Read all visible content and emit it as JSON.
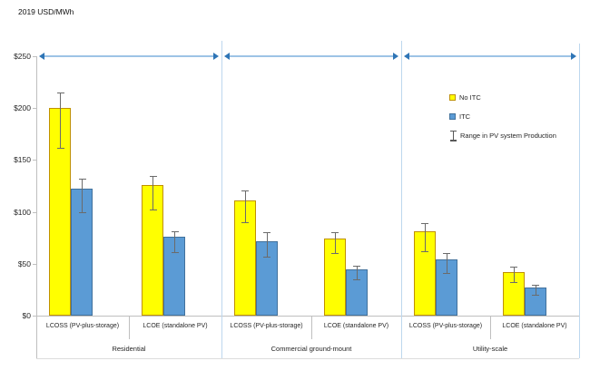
{
  "title": "2019 USD/MWh",
  "legend": {
    "items": [
      {
        "label": "No ITC",
        "swatch": "no-itc-square",
        "color": "#FFFF00"
      },
      {
        "label": "ITC",
        "swatch": "itc-square",
        "color": "#5B9BD5"
      },
      {
        "label": "Range in PV system Production",
        "swatch": "error-bar-glyph"
      }
    ]
  },
  "chart_data": {
    "type": "bar",
    "title": "2019 USD/MWh",
    "ylabel": "2019 USD/MWh",
    "ylim": [
      0,
      250
    ],
    "ytick_labels": [
      "$0",
      "$50",
      "$100",
      "$150",
      "$200",
      "$250"
    ],
    "ytick_values": [
      0,
      50,
      100,
      150,
      200,
      250
    ],
    "grid": false,
    "legend_position": "upper-right-inside",
    "series": [
      "No ITC",
      "ITC"
    ],
    "error_bars_meaning": "Range in PV system Production",
    "groups": [
      {
        "label": "Residential",
        "categories": [
          {
            "label": "LCOSS (PV-plus-storage)",
            "values": {
              "No ITC": 200,
              "ITC": 122
            },
            "error_ranges": {
              "No ITC": [
                162,
                215
              ],
              "ITC": [
                100,
                132
              ]
            }
          },
          {
            "label": "LCOE (standalone PV)",
            "values": {
              "No ITC": 126,
              "ITC": 76
            },
            "error_ranges": {
              "No ITC": [
                102,
                135
              ],
              "ITC": [
                61,
                81
              ]
            }
          }
        ]
      },
      {
        "label": "Commercial ground-mount",
        "categories": [
          {
            "label": "LCOSS (PV-plus-storage)",
            "values": {
              "No ITC": 111,
              "ITC": 72
            },
            "error_ranges": {
              "No ITC": [
                90,
                121
              ],
              "ITC": [
                57,
                80
              ]
            }
          },
          {
            "label": "LCOE (standalone PV)",
            "values": {
              "No ITC": 74,
              "ITC": 45
            },
            "error_ranges": {
              "No ITC": [
                60,
                80
              ],
              "ITC": [
                35,
                48
              ]
            }
          }
        ]
      },
      {
        "label": "Utility-scale",
        "categories": [
          {
            "label": "LCOSS (PV-plus-storage)",
            "values": {
              "No ITC": 81,
              "ITC": 54
            },
            "error_ranges": {
              "No ITC": [
                62,
                89
              ],
              "ITC": [
                41,
                60
              ]
            }
          },
          {
            "label": "LCOE (standalone PV)",
            "values": {
              "No ITC": 42,
              "ITC": 27
            },
            "error_ranges": {
              "No ITC": [
                32,
                47
              ],
              "ITC": [
                20,
                30
              ]
            }
          }
        ]
      }
    ],
    "colors": {
      "No ITC": "#FFFF00",
      "ITC": "#5B9BD5",
      "no_itc_border": "#BF9000",
      "itc_border": "#41719C",
      "arrow_line": "#9DC3E6",
      "arrow_head": "#2E75B6",
      "separator": "#BDD7EE",
      "axis": "#BFBFBF",
      "error_bar": "#6B6B6B"
    }
  }
}
